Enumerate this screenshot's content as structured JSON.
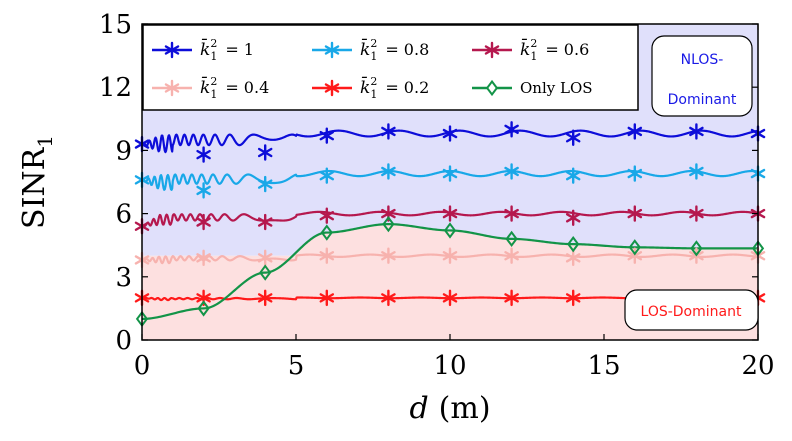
{
  "chart_data": {
    "type": "line",
    "xlabel_var": "d",
    "xlabel_unit": "(m)",
    "ylabel_main": "SINR",
    "ylabel_sub": "1",
    "xlim": [
      0,
      20
    ],
    "ylim": [
      0,
      15
    ],
    "xticks": [
      0,
      5,
      10,
      15,
      20
    ],
    "yticks": [
      0,
      3,
      6,
      9,
      12,
      15
    ],
    "xtick_labels": [
      "0",
      "5",
      "10",
      "15",
      "20"
    ],
    "ytick_labels": [
      "0",
      "3",
      "6",
      "9",
      "12",
      "15"
    ],
    "grid": false,
    "legend_position": "top-left",
    "regions": [
      {
        "label": "NLOS-\nDominant",
        "line1": "NLOS-",
        "line2": "Dominant",
        "color": "#e0e0fb",
        "text_color": "#1a1ae6"
      },
      {
        "label": "LOS-Dominant",
        "color": "#fde0e0",
        "text_color": "#ff1a1a"
      }
    ],
    "series": [
      {
        "name_prefix": "k̄",
        "name_sup": "2",
        "name_sub": "1",
        "name_value": "= 1",
        "color": "#0d0dd9",
        "marker": "star",
        "level": 9.8,
        "amplitude": 0.25,
        "x": [
          0,
          2,
          4,
          6,
          8,
          10,
          12,
          14,
          16,
          18,
          20
        ],
        "y": [
          9.3,
          8.8,
          8.9,
          9.7,
          9.9,
          9.8,
          10.0,
          9.6,
          9.9,
          9.9,
          9.8
        ]
      },
      {
        "name_prefix": "k̄",
        "name_sup": "2",
        "name_sub": "1",
        "name_value": "= 0.8",
        "color": "#19a8e8",
        "marker": "star",
        "level": 7.9,
        "amplitude": 0.22,
        "x": [
          0,
          2,
          4,
          6,
          8,
          10,
          12,
          14,
          16,
          18,
          20
        ],
        "y": [
          7.6,
          7.1,
          7.4,
          7.8,
          8.0,
          7.9,
          8.0,
          7.8,
          7.9,
          8.0,
          7.9
        ]
      },
      {
        "name_prefix": "k̄",
        "name_sup": "2",
        "name_sub": "1",
        "name_value": "= 0.6",
        "color": "#b5184e",
        "marker": "star",
        "level": 6.0,
        "amplitude": 0.15,
        "x": [
          0,
          2,
          4,
          6,
          8,
          10,
          12,
          14,
          16,
          18,
          20
        ],
        "y": [
          5.4,
          5.6,
          5.6,
          5.9,
          6.0,
          6.0,
          6.0,
          5.8,
          6.0,
          6.0,
          6.0
        ]
      },
      {
        "name_prefix": "k̄",
        "name_sup": "2",
        "name_sub": "1",
        "name_value": "= 0.4",
        "color": "#f7b2ae",
        "marker": "star",
        "level": 4.0,
        "amplitude": 0.1,
        "x": [
          0,
          2,
          4,
          6,
          8,
          10,
          12,
          14,
          16,
          18,
          20
        ],
        "y": [
          3.8,
          3.9,
          3.9,
          4.0,
          4.0,
          4.0,
          4.0,
          3.9,
          4.0,
          4.0,
          4.0
        ]
      },
      {
        "name_prefix": "k̄",
        "name_sup": "2",
        "name_sub": "1",
        "name_value": "= 0.2",
        "color": "#ff1a1a",
        "marker": "star",
        "level": 2.0,
        "amplitude": 0.03,
        "x": [
          0,
          2,
          4,
          6,
          8,
          10,
          12,
          14,
          16,
          18,
          20
        ],
        "y": [
          2.0,
          2.0,
          2.0,
          2.0,
          2.0,
          2.0,
          2.0,
          2.0,
          2.0,
          2.0,
          2.0
        ]
      },
      {
        "name": "Only LOS",
        "color": "#139448",
        "marker": "diamond",
        "x": [
          0,
          2,
          4,
          6,
          8,
          10,
          12,
          14,
          16,
          18,
          20
        ],
        "y": [
          1.0,
          1.5,
          3.2,
          5.1,
          5.5,
          5.2,
          4.8,
          4.55,
          4.4,
          4.35,
          4.35
        ]
      }
    ]
  }
}
